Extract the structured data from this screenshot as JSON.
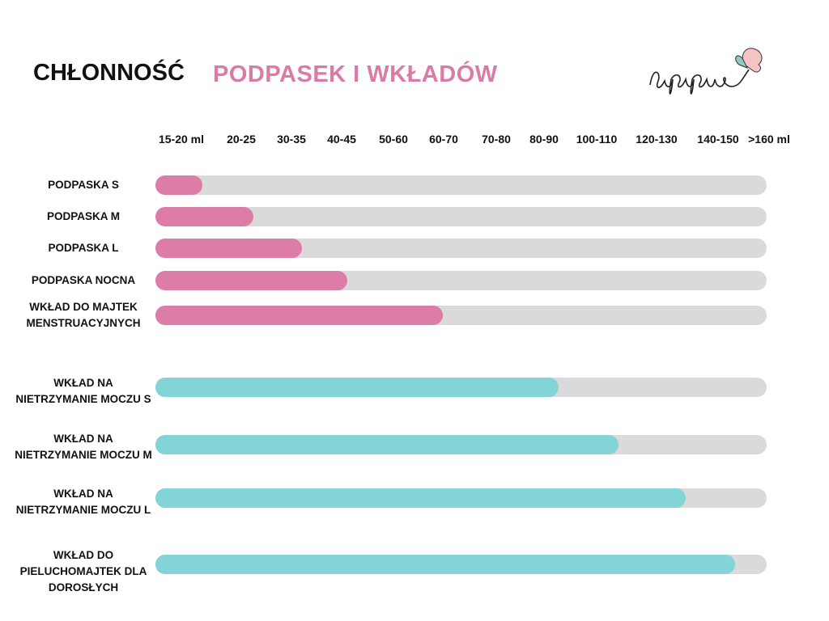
{
  "header": {
    "title_black": "CHŁONNOŚĆ",
    "title_pink": "PODPASEK I WKŁADÓW",
    "logo_text": "pupus"
  },
  "colors": {
    "pink": "#dd7ca7",
    "teal": "#83d4d7",
    "track": "#dadada"
  },
  "chart_data": {
    "type": "bar",
    "orientation": "horizontal",
    "title": "CHŁONNOŚĆ PODPASEK I WKŁADÓW",
    "x_tick_labels": [
      "15-20 ml",
      "20-25",
      "30-35",
      "40-45",
      "50-60",
      "60-70",
      "70-80",
      "80-90",
      "100-110",
      "120-130",
      "140-150",
      ">160 ml"
    ],
    "series": [
      {
        "label": "PODPASKA S",
        "fill": 0.077,
        "color": "pink"
      },
      {
        "label": "PODPASKA M",
        "fill": 0.16,
        "color": "pink"
      },
      {
        "label": "PODPASKA L",
        "fill": 0.24,
        "color": "pink"
      },
      {
        "label": "PODPASKA NOCNA",
        "fill": 0.314,
        "color": "pink"
      },
      {
        "label": "WKŁAD DO MAJTEK MENSTRUACYJNYCH",
        "fill": 0.47,
        "color": "pink"
      },
      {
        "label": "WKŁAD NA NIETRZYMANIE MOCZU S",
        "fill": 0.659,
        "color": "teal"
      },
      {
        "label": "WKŁAD NA NIETRZYMANIE MOCZU M",
        "fill": 0.757,
        "color": "teal"
      },
      {
        "label": "WKŁAD NA NIETRZYMANIE MOCZU L",
        "fill": 0.868,
        "color": "teal"
      },
      {
        "label": "WKŁAD DO PIELUCHOMAJTEK DLA DOROSŁYCH",
        "fill": 0.949,
        "color": "teal"
      }
    ]
  }
}
